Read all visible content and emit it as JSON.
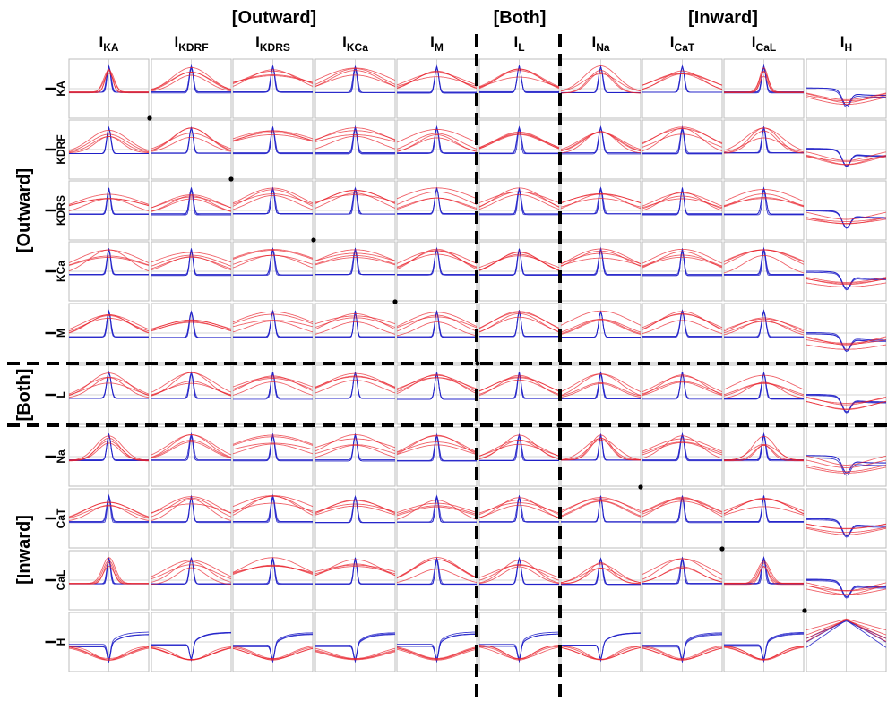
{
  "chart_data": {
    "type": "line",
    "layout": "10 x 10 matrix of small line-plot panels",
    "group_labels": {
      "outward": "[Outward]",
      "both": "[Both]",
      "inward": "[Inward]"
    },
    "columns": [
      {
        "main": "I",
        "sub": "KA"
      },
      {
        "main": "I",
        "sub": "KDRF"
      },
      {
        "main": "I",
        "sub": "KDRS"
      },
      {
        "main": "I",
        "sub": "KCa"
      },
      {
        "main": "I",
        "sub": "M"
      },
      {
        "main": "I",
        "sub": "L"
      },
      {
        "main": "I",
        "sub": "Na"
      },
      {
        "main": "I",
        "sub": "CaT"
      },
      {
        "main": "I",
        "sub": "CaL"
      },
      {
        "main": "I",
        "sub": "H"
      }
    ],
    "rows": [
      {
        "main": "I",
        "sub": "KA"
      },
      {
        "main": "I",
        "sub": "KDRF"
      },
      {
        "main": "I",
        "sub": "KDRS"
      },
      {
        "main": "I",
        "sub": "KCa"
      },
      {
        "main": "I",
        "sub": "M"
      },
      {
        "main": "I",
        "sub": "L"
      },
      {
        "main": "I",
        "sub": "Na"
      },
      {
        "main": "I",
        "sub": "CaT"
      },
      {
        "main": "I",
        "sub": "CaL"
      },
      {
        "main": "I",
        "sub": "H"
      }
    ],
    "series_colors": {
      "blue": "#1f1fc8",
      "red": "#e8202a"
    },
    "grid": "center crosshair per panel",
    "panel_style": {
      "peak": "sharp blue spike at center; red traces peaked, width set by column/row",
      "diag": "diagonal panels show a black dot at the upper-left corner",
      "h_col": "I_H column traces dip downward (negative deflection)",
      "h_row": "I_H row traces dip then recover upward"
    }
  }
}
